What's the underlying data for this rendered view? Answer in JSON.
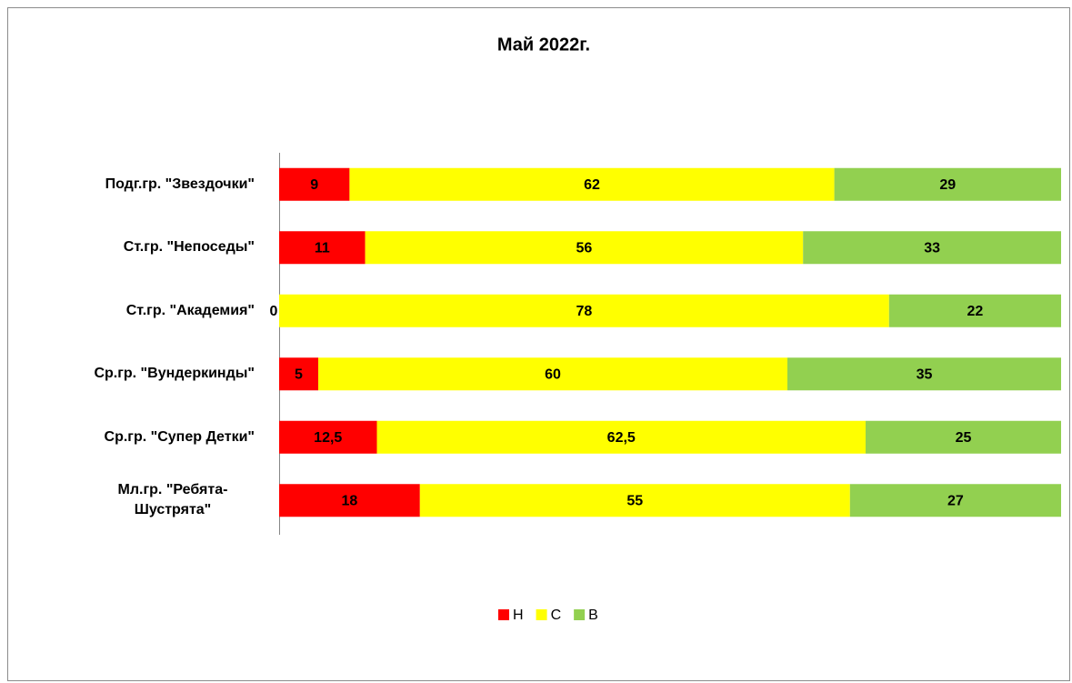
{
  "chart_data": {
    "type": "stacked_bar_horizontal",
    "title": "Май 2022г.",
    "categories": [
      "Подг.гр. \"Звездочки\"",
      "Ст.гр. \"Непоседы\"",
      "Ст.гр. \"Академия\"",
      "Ср.гр. \"Вундеркинды\"",
      "Ср.гр. \"Супер Детки\"",
      "Мл.гр. \"Ребята-Шустрята\""
    ],
    "series": [
      {
        "name": "Н",
        "color": "#ff0000",
        "values": [
          9,
          11,
          0,
          5,
          12.5,
          18
        ],
        "value_labels": [
          "9",
          "11",
          "0",
          "5",
          "12,5",
          "18"
        ]
      },
      {
        "name": "С",
        "color": "#ffff00",
        "values": [
          62,
          56,
          78,
          60,
          62.5,
          55
        ],
        "value_labels": [
          "62",
          "56",
          "78",
          "60",
          "62,5",
          "55"
        ]
      },
      {
        "name": "В",
        "color": "#92d050",
        "values": [
          29,
          33,
          22,
          35,
          25,
          27
        ]
      }
    ],
    "xlim": [
      0,
      100
    ],
    "legend": "bottom"
  }
}
